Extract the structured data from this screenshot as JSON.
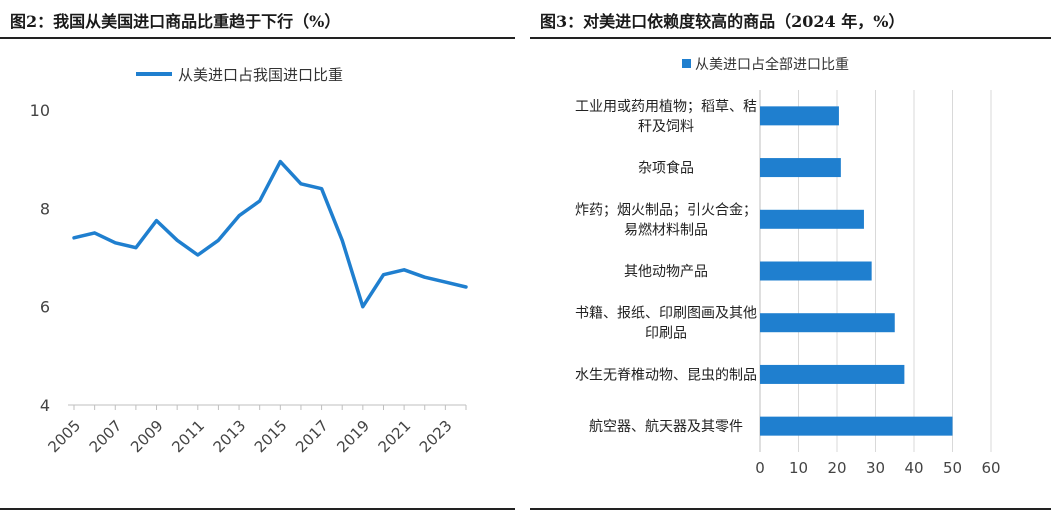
{
  "chart_data": [
    {
      "type": "line",
      "title": "图2：我国从美国进口商品比重趋于下行（%）",
      "legend_position": "top",
      "x": [
        "2005",
        "2006",
        "2007",
        "2008",
        "2009",
        "2010",
        "2011",
        "2012",
        "2013",
        "2014",
        "2015",
        "2016",
        "2017",
        "2018",
        "2019",
        "2020",
        "2021",
        "2022",
        "2023",
        "2024"
      ],
      "x_tick_labels": [
        "2005",
        "2007",
        "2009",
        "2011",
        "2013",
        "2015",
        "2017",
        "2019",
        "2021",
        "2023"
      ],
      "series": [
        {
          "name": "从美进口占我国进口比重",
          "values": [
            7.4,
            7.5,
            7.3,
            7.2,
            7.75,
            7.35,
            7.05,
            7.35,
            7.85,
            8.15,
            8.95,
            8.5,
            8.4,
            7.35,
            6.0,
            6.65,
            6.75,
            6.6,
            6.5,
            6.4
          ]
        }
      ],
      "ylim": [
        4,
        10
      ],
      "y_ticks": [
        4,
        6,
        8,
        10
      ],
      "grid": false,
      "colors": {
        "line": "#1f7fcf"
      }
    },
    {
      "type": "bar",
      "orientation": "horizontal",
      "title": "图3：对美进口依赖度较高的商品（2024 年，%）",
      "legend_position": "top",
      "categories": [
        "工业用或药用植物；稻草、秸秆及饲料",
        "杂项食品",
        "炸药；烟火制品；引火合金；易燃材料制品",
        "其他动物产品",
        "书籍、报纸、印刷图画及其他印刷品",
        "水生无脊椎动物、昆虫的制品",
        "航空器、航天器及其零件"
      ],
      "category_label_lines": [
        [
          "工业用或药用植物；稻草、秸",
          "秆及饲料"
        ],
        [
          "杂项食品"
        ],
        [
          "炸药；烟火制品；引火合金；",
          "易燃材料制品"
        ],
        [
          "其他动物产品"
        ],
        [
          "书籍、报纸、印刷图画及其他",
          "印刷品"
        ],
        [
          "水生无脊椎动物、昆虫的制品"
        ],
        [
          "航空器、航天器及其零件"
        ]
      ],
      "series": [
        {
          "name": "从美进口占全部进口比重",
          "values": [
            20.5,
            21,
            27,
            29,
            35,
            37.5,
            50
          ]
        }
      ],
      "xlim": [
        0,
        60
      ],
      "x_ticks": [
        0,
        10,
        20,
        30,
        40,
        50,
        60
      ],
      "grid": true,
      "colors": {
        "bar": "#1f7fcf",
        "grid": "#d9d9d9"
      }
    }
  ]
}
